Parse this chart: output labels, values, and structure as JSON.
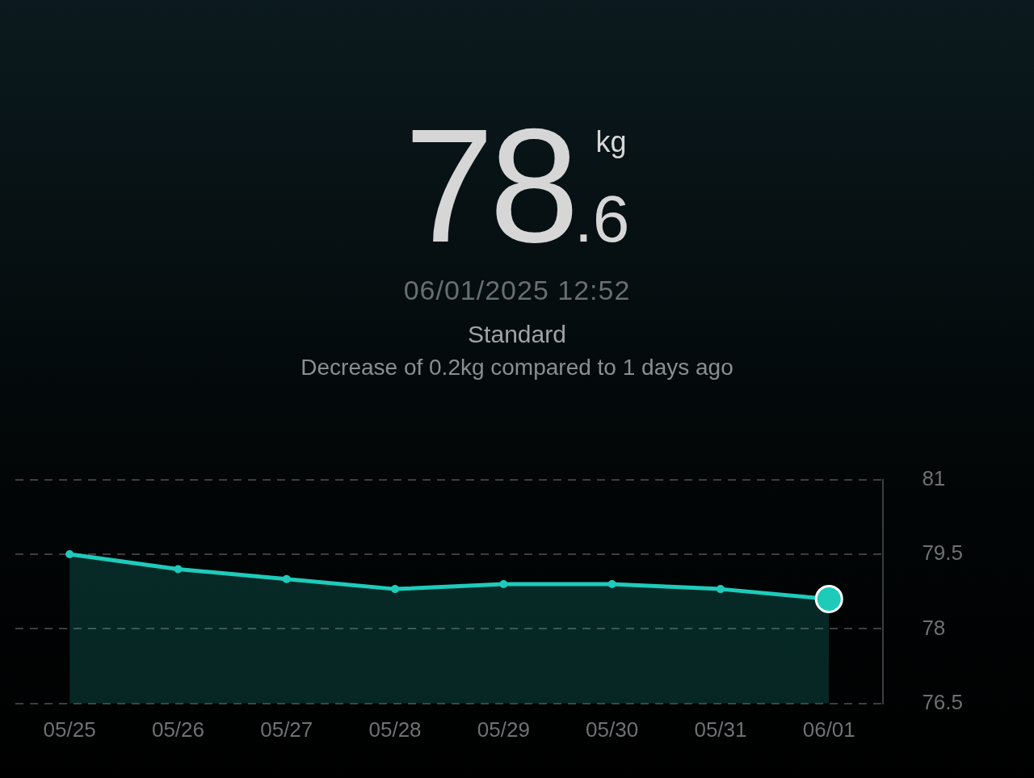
{
  "chart_data": {
    "type": "area",
    "title": "78.6",
    "subtitle": "06/01/2025 12:52",
    "annotations": [
      "kg",
      "Standard",
      "Decrease of 0.2kg compared to 1 days ago"
    ],
    "categories": [
      "05/25",
      "05/26",
      "05/27",
      "05/28",
      "05/29",
      "05/30",
      "05/31",
      "06/01"
    ],
    "series": [
      {
        "color": "#1ecbbb",
        "values": [
          79.5,
          79.2,
          79.0,
          78.8,
          78.9,
          78.9,
          78.8,
          78.6
        ]
      }
    ],
    "ylim": [
      76.5,
      81
    ],
    "yticks": [
      76.5,
      78,
      79.5,
      81
    ],
    "grid": "y",
    "marker": "circle",
    "line_style": "solid"
  }
}
